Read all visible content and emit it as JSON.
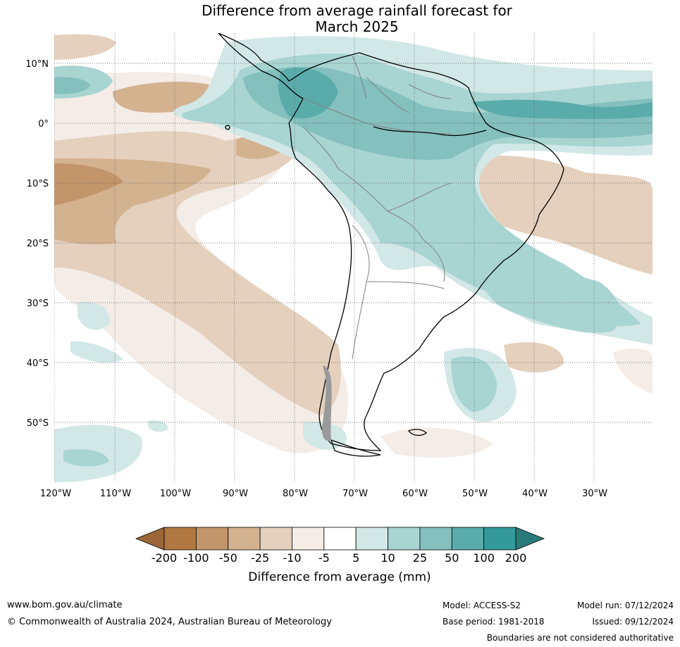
{
  "title": {
    "line1": "Difference from average rainfall forecast for",
    "line2": "March 2025"
  },
  "map": {
    "latitude_labels": [
      "10°N",
      "0°",
      "10°S",
      "20°S",
      "30°S",
      "40°S",
      "50°S"
    ],
    "longitude_labels": [
      "120°W",
      "110°W",
      "100°W",
      "90°W",
      "80°W",
      "70°W",
      "60°W",
      "50°W",
      "40°W",
      "30°W"
    ]
  },
  "colorbar": {
    "label": "Difference from average (mm)",
    "ticks": [
      "-200",
      "-100",
      "-50",
      "-25",
      "-10",
      "-5",
      "5",
      "10",
      "25",
      "50",
      "100",
      "200"
    ],
    "colors": [
      "#9c6638",
      "#b07840",
      "#c3956a",
      "#d3b290",
      "#e4d0bd",
      "#f4ece6",
      "#ffffff",
      "#d2e8e6",
      "#a8d4d2",
      "#83c0be",
      "#5aacab",
      "#34999a",
      "#2a7a7a"
    ]
  },
  "footer": {
    "website": "www.bom.gov.au/climate",
    "copyright": "© Commonwealth of Australia 2024, Australian Bureau of Meteorology",
    "model": "Model: ACCESS-S2",
    "base_period": "Base period: 1981-2018",
    "model_run": "Model run: 07/12/2024",
    "issued": "Issued: 09/12/2024",
    "disclaimer": "Boundaries are not considered authoritative"
  }
}
